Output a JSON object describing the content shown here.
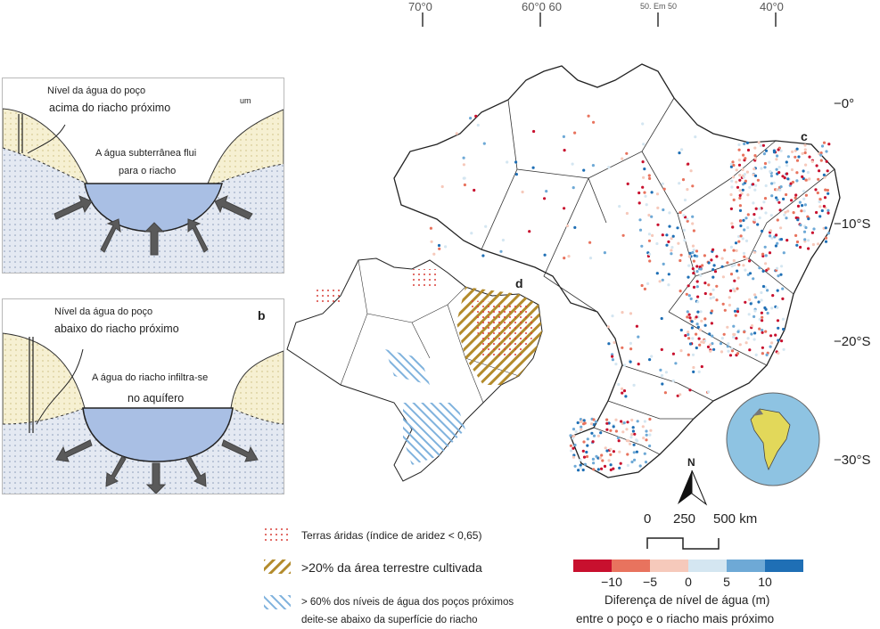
{
  "panel_a": {
    "well_label": "Nível da água do poço",
    "well_relation": "acima do riacho próximo",
    "corner_mark": "um",
    "flow_line1": "A água subterrânea flui",
    "flow_line2": "para o riacho"
  },
  "panel_b": {
    "well_label": "Nível da água do poço",
    "well_relation": "abaixo do riacho próximo",
    "letter": "b",
    "flow_line1": "A água do riacho infiltra-se",
    "flow_line2": "no aquífero"
  },
  "map": {
    "lon_ticks": [
      "70°0",
      "60°0 60",
      "50. Em 50",
      "40°0"
    ],
    "lat_ticks": [
      "−0°",
      "−10°S",
      "−20°S",
      "−30°S"
    ],
    "panel_c": "c",
    "panel_d": "d",
    "north": "N",
    "scale_labels": [
      "0",
      "250",
      "500 km"
    ]
  },
  "legend": {
    "arid": "Terras áridas (índice de aridez < 0,65)",
    "cultivated": ">20% da área terrestre cultivada",
    "below_line1": "> 60% dos níveis de água dos poços próximos",
    "below_line2": "deite-se abaixo da superfície do riacho"
  },
  "colorbar": {
    "title": "Diferença de nível de água (m)",
    "subtitle": "entre o poço e o riacho mais próximo",
    "ticks": [
      "−10",
      "−5",
      "0",
      "5",
      "10"
    ],
    "colors": [
      "#c8102e",
      "#e8735e",
      "#f6c9bb",
      "#d4e6f1",
      "#6ea9d6",
      "#1f6fb5"
    ]
  }
}
